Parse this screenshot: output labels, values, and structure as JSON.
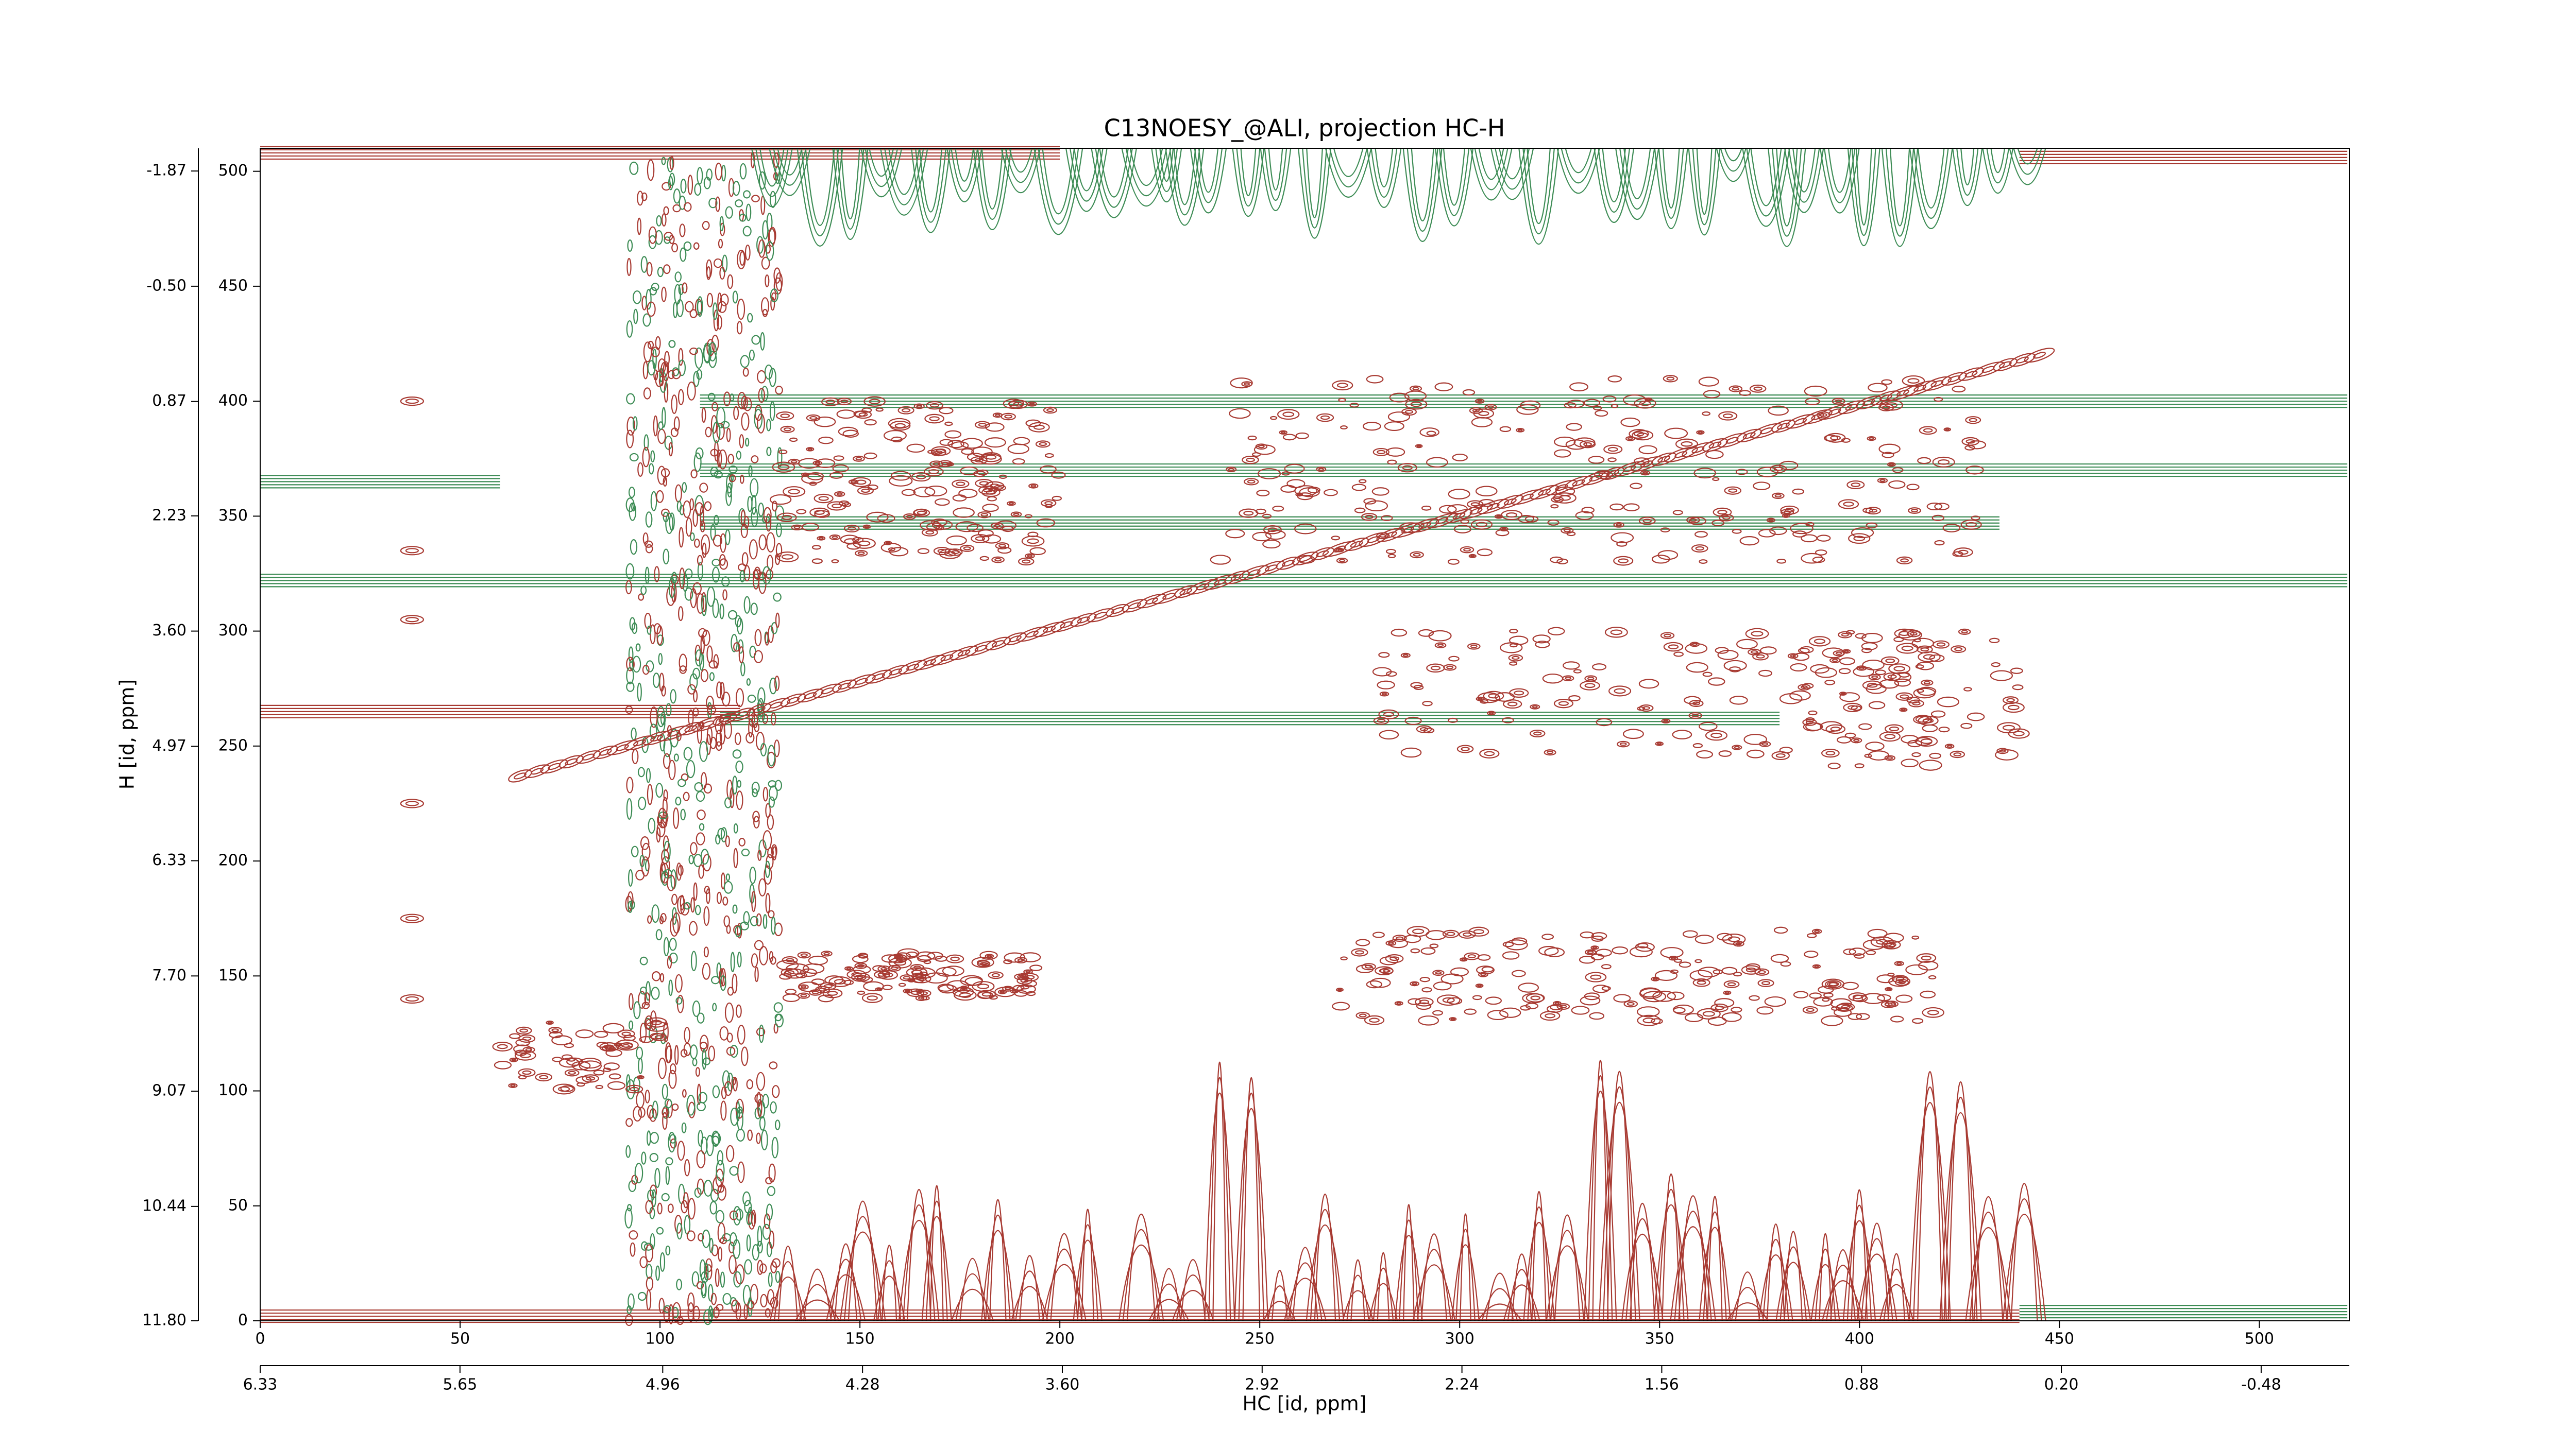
{
  "chart_data": {
    "type": "contour",
    "title": "C13NOESY_@ALI, projection HC-H",
    "xlabel": "HC [id, ppm]",
    "ylabel": "H [id, ppm]",
    "xlim": [
      0,
      522.5
    ],
    "xticks": [
      0,
      50,
      100,
      150,
      200,
      250,
      300,
      350,
      400,
      450,
      500
    ],
    "ylim": [
      0,
      510
    ],
    "yticks": [
      0,
      50,
      100,
      150,
      200,
      250,
      300,
      350,
      400,
      450,
      500
    ],
    "x2lim": [
      6.33,
      -0.78
    ],
    "x2ticks": [
      6.33,
      5.65,
      4.96,
      4.28,
      {
        "value": 3.6,
        "label": "3.60"
      },
      2.92,
      2.24,
      1.56,
      0.88,
      {
        "value": 0.2,
        "label": "0.20"
      },
      -0.48
    ],
    "y2lim": [
      11.8,
      -2.14
    ],
    "y2ticks": [
      {
        "value": 11.8,
        "label": "11.80"
      },
      10.44,
      9.07,
      {
        "value": 7.7,
        "label": "7.70"
      },
      6.33,
      4.97,
      {
        "value": 3.6,
        "label": "3.60"
      },
      2.23,
      0.87,
      {
        "value": -0.5,
        "label": "-0.50"
      },
      -1.87
    ],
    "contour_colors": [
      "#a83a32",
      "#3d8c55"
    ]
  }
}
